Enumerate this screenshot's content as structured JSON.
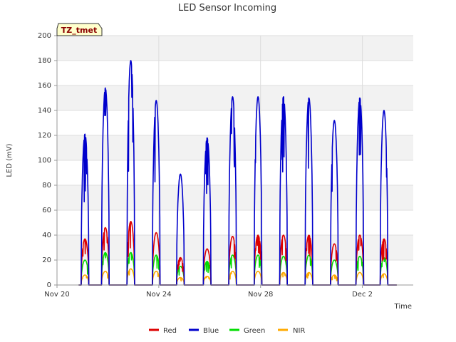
{
  "chart_data": {
    "type": "line",
    "title": "LED Sensor Incoming",
    "xlabel": "Time",
    "ylabel": "LED (mV)",
    "ylim": [
      0,
      200
    ],
    "xlim": [
      0,
      14
    ],
    "yticks": [
      0,
      20,
      40,
      60,
      80,
      100,
      120,
      140,
      160,
      180,
      200
    ],
    "xticks": [
      {
        "value": 0,
        "label": "Nov 20"
      },
      {
        "value": 4,
        "label": "Nov 24"
      },
      {
        "value": 8,
        "label": "Nov 28"
      },
      {
        "value": 12,
        "label": "Dec 2"
      }
    ],
    "badge": "TZ_tmet",
    "grid": true,
    "legend_position": "bottom",
    "series": [
      {
        "name": "Red",
        "color": "#dd0000",
        "peaks": [
          37,
          46,
          51,
          42,
          22,
          29,
          39,
          40,
          40,
          40,
          33,
          40,
          37
        ]
      },
      {
        "name": "Blue",
        "color": "#0000cc",
        "peaks": [
          121,
          158,
          180,
          148,
          89,
          118,
          151,
          151,
          151,
          150,
          132,
          150,
          140
        ]
      },
      {
        "name": "Green",
        "color": "#00dd00",
        "peaks": [
          20,
          26,
          26,
          24,
          15,
          19,
          24,
          24,
          23,
          24,
          20,
          23,
          22
        ]
      },
      {
        "name": "NIR",
        "color": "#ffaa00",
        "peaks": [
          8,
          11,
          13,
          11,
          6,
          7,
          11,
          11,
          10,
          10,
          8,
          10,
          9
        ]
      }
    ],
    "day_starts": [
      0.95,
      1.75,
      2.75,
      3.75,
      4.7,
      5.75,
      6.75,
      7.75,
      8.75,
      9.75,
      10.75,
      11.75,
      12.7
    ]
  },
  "colors": {
    "band": "#f2f2f2",
    "grid": "#dddddd",
    "badge_bg": "#ffffcc"
  }
}
